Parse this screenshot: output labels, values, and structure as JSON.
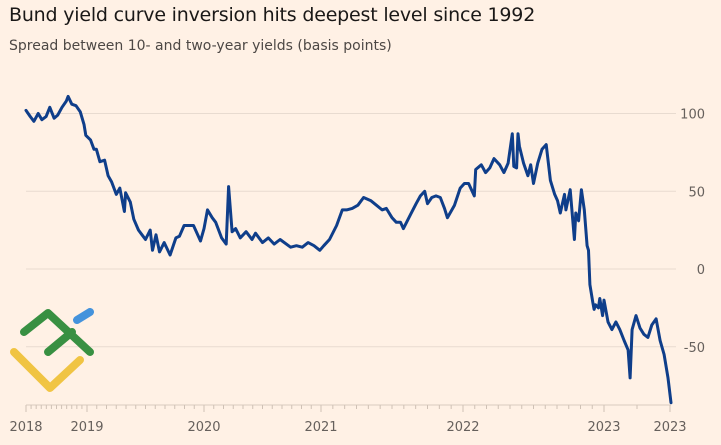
{
  "title": "Bund yield curve inversion hits deepest level since 1992",
  "subtitle": "Spread between 10- and two-year yields (basis points)",
  "colors": {
    "background": "#fff1e5",
    "line": "#0f3e8a",
    "grid": "#e8dbd0"
  },
  "logo": {
    "colors": [
      "#2e8b3a",
      "#3b8fdc",
      "#f0c23b"
    ]
  },
  "chart_data": {
    "type": "line",
    "title": "Bund yield curve inversion hits deepest level since 1992",
    "subtitle": "Spread between 10- and two-year yields (basis points)",
    "xlabel": "",
    "ylabel": "",
    "ylim": [
      -88,
      110
    ],
    "grid": true,
    "y_axis_side": "right",
    "yticks": [
      100,
      50,
      0,
      -50
    ],
    "xticks": [
      {
        "label": "2018",
        "value": 2018.0
      },
      {
        "label": "2019",
        "value": 2019.0
      },
      {
        "label": "2020",
        "value": 2020.0
      },
      {
        "label": "2021",
        "value": 2021.0
      },
      {
        "label": "2022",
        "value": 2022.0
      },
      {
        "label": "2023",
        "value": 2023.0
      },
      {
        "label": "2023",
        "value": 2023.2
      }
    ],
    "series": [
      {
        "x": [
          2018.0,
          2018.07,
          2018.13,
          2018.2,
          2018.26,
          2018.33,
          2018.39,
          2018.46,
          2018.52,
          2018.59,
          2018.66,
          2018.69,
          2018.75,
          2018.82,
          2018.89,
          2018.95,
          2018.98,
          2019.03,
          2019.06,
          2019.08,
          2019.11,
          2019.15,
          2019.18,
          2019.21,
          2019.25,
          2019.28,
          2019.32,
          2019.33,
          2019.37,
          2019.4,
          2019.44,
          2019.47,
          2019.5,
          2019.54,
          2019.56,
          2019.59,
          2019.62,
          2019.66,
          2019.71,
          2019.76,
          2019.79,
          2019.83,
          2019.86,
          2019.91,
          2019.97,
          2020.0,
          2020.03,
          2020.07,
          2020.1,
          2020.15,
          2020.19,
          2020.21,
          2020.24,
          2020.27,
          2020.31,
          2020.36,
          2020.41,
          2020.44,
          2020.5,
          2020.55,
          2020.6,
          2020.65,
          2020.74,
          2020.79,
          2020.84,
          2020.89,
          2020.94,
          2020.99,
          2021.02,
          2021.06,
          2021.11,
          2021.15,
          2021.18,
          2021.22,
          2021.26,
          2021.3,
          2021.35,
          2021.39,
          2021.43,
          2021.46,
          2021.5,
          2021.53,
          2021.56,
          2021.58,
          2021.63,
          2021.67,
          2021.7,
          2021.73,
          2021.75,
          2021.78,
          2021.81,
          2021.84,
          2021.87,
          2021.89,
          2021.94,
          2021.98,
          2022.01,
          2022.04,
          2022.08,
          2022.09,
          2022.13,
          2022.16,
          2022.19,
          2022.22,
          2022.26,
          2022.29,
          2022.32,
          2022.35,
          2022.36,
          2022.38,
          2022.39,
          2022.4,
          2022.43,
          2022.46,
          2022.48,
          2022.5,
          2022.53,
          2022.56,
          2022.59,
          2022.62,
          2022.65,
          2022.67,
          2022.69,
          2022.72,
          2022.73,
          2022.76,
          2022.79,
          2022.8,
          2022.82,
          2022.84,
          2022.86,
          2022.88,
          2022.89,
          2022.9,
          2022.92,
          2022.93,
          2022.94,
          2022.96,
          2022.97,
          2022.99,
          2023.0,
          2023.012,
          2023.024,
          2023.036,
          2023.048,
          2023.061,
          2023.073,
          2023.079,
          2023.085,
          2023.097,
          2023.109,
          2023.121,
          2023.133,
          2023.145,
          2023.158,
          2023.17,
          2023.182,
          2023.194,
          2023.203
        ],
        "y": [
          102,
          98,
          95,
          100,
          96,
          98,
          104,
          97,
          99,
          104,
          108,
          111,
          106,
          105,
          101,
          93,
          86,
          83,
          77,
          77,
          69,
          70,
          60,
          56,
          48,
          52,
          37,
          49,
          43,
          32,
          25,
          22,
          19,
          25,
          12,
          22,
          11,
          17,
          9,
          20,
          21,
          28,
          28,
          28,
          18,
          26,
          38,
          33,
          30,
          20,
          16,
          53,
          24,
          26,
          20,
          24,
          19,
          23,
          17,
          20,
          16,
          19,
          14,
          15,
          14,
          17,
          15,
          12,
          15,
          19,
          28,
          38,
          38,
          39,
          41,
          46,
          44,
          41,
          38,
          39,
          33,
          30,
          30,
          26,
          35,
          42,
          47,
          50,
          42,
          46,
          47,
          46,
          39,
          33,
          41,
          52,
          55,
          55,
          47,
          64,
          67,
          62,
          65,
          71,
          67,
          62,
          68,
          87,
          66,
          65,
          87,
          79,
          68,
          60,
          67,
          55,
          68,
          77,
          80,
          57,
          48,
          44,
          36,
          48,
          38,
          51,
          19,
          36,
          31,
          51,
          38,
          15,
          12,
          -10,
          -21,
          -26,
          -23,
          -25,
          -19,
          -30,
          -20,
          -34,
          -39,
          -34,
          -39,
          -46,
          -52,
          -70,
          -39,
          -30,
          -38,
          -42,
          -44,
          -36,
          -32,
          -46,
          -55,
          -70,
          -86
        ]
      }
    ]
  }
}
